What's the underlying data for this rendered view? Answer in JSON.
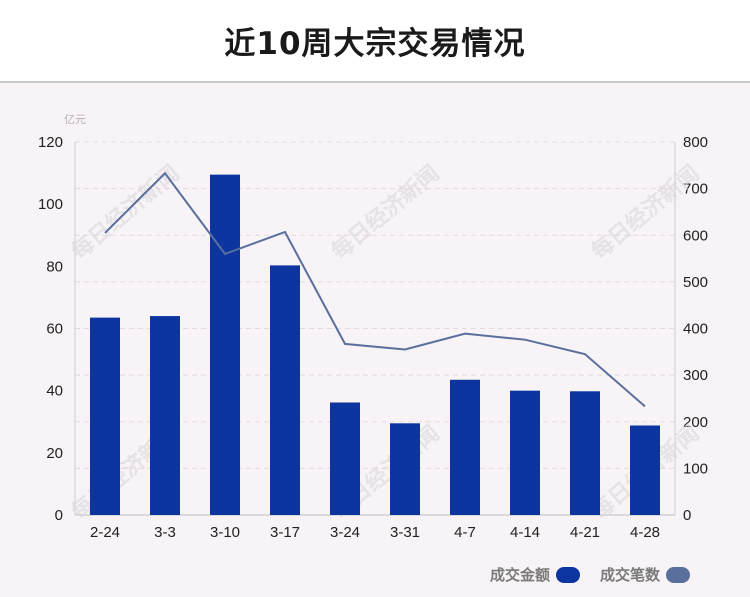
{
  "title": "近10周大宗交易情况",
  "watermark": "每日经济新闻",
  "chart_data": {
    "type": "bar+line",
    "categories": [
      "2-24",
      "3-3",
      "3-10",
      "3-17",
      "3-24",
      "3-31",
      "4-7",
      "4-14",
      "4-21",
      "4-28"
    ],
    "series": [
      {
        "name": "成交金额",
        "type": "bar",
        "axis": "left",
        "color": "#0d35a0",
        "values": [
          63.5,
          64,
          109.5,
          80.3,
          36.2,
          29.5,
          43.5,
          40,
          39.8,
          28.8
        ]
      },
      {
        "name": "成交笔数",
        "type": "line",
        "axis": "right",
        "color": "#5a6f9c",
        "values": [
          605,
          733,
          560,
          607,
          367,
          355,
          389,
          376,
          345,
          233
        ]
      }
    ],
    "y_left": {
      "unit": "亿元",
      "ylim": [
        0,
        120
      ],
      "ticks": [
        0,
        20,
        40,
        60,
        80,
        100,
        120
      ]
    },
    "y_right": {
      "ylim": [
        0,
        800
      ],
      "ticks": [
        0,
        100,
        200,
        300,
        400,
        500,
        600,
        700,
        800
      ]
    },
    "grid": true,
    "legend_position": "bottom-right"
  }
}
